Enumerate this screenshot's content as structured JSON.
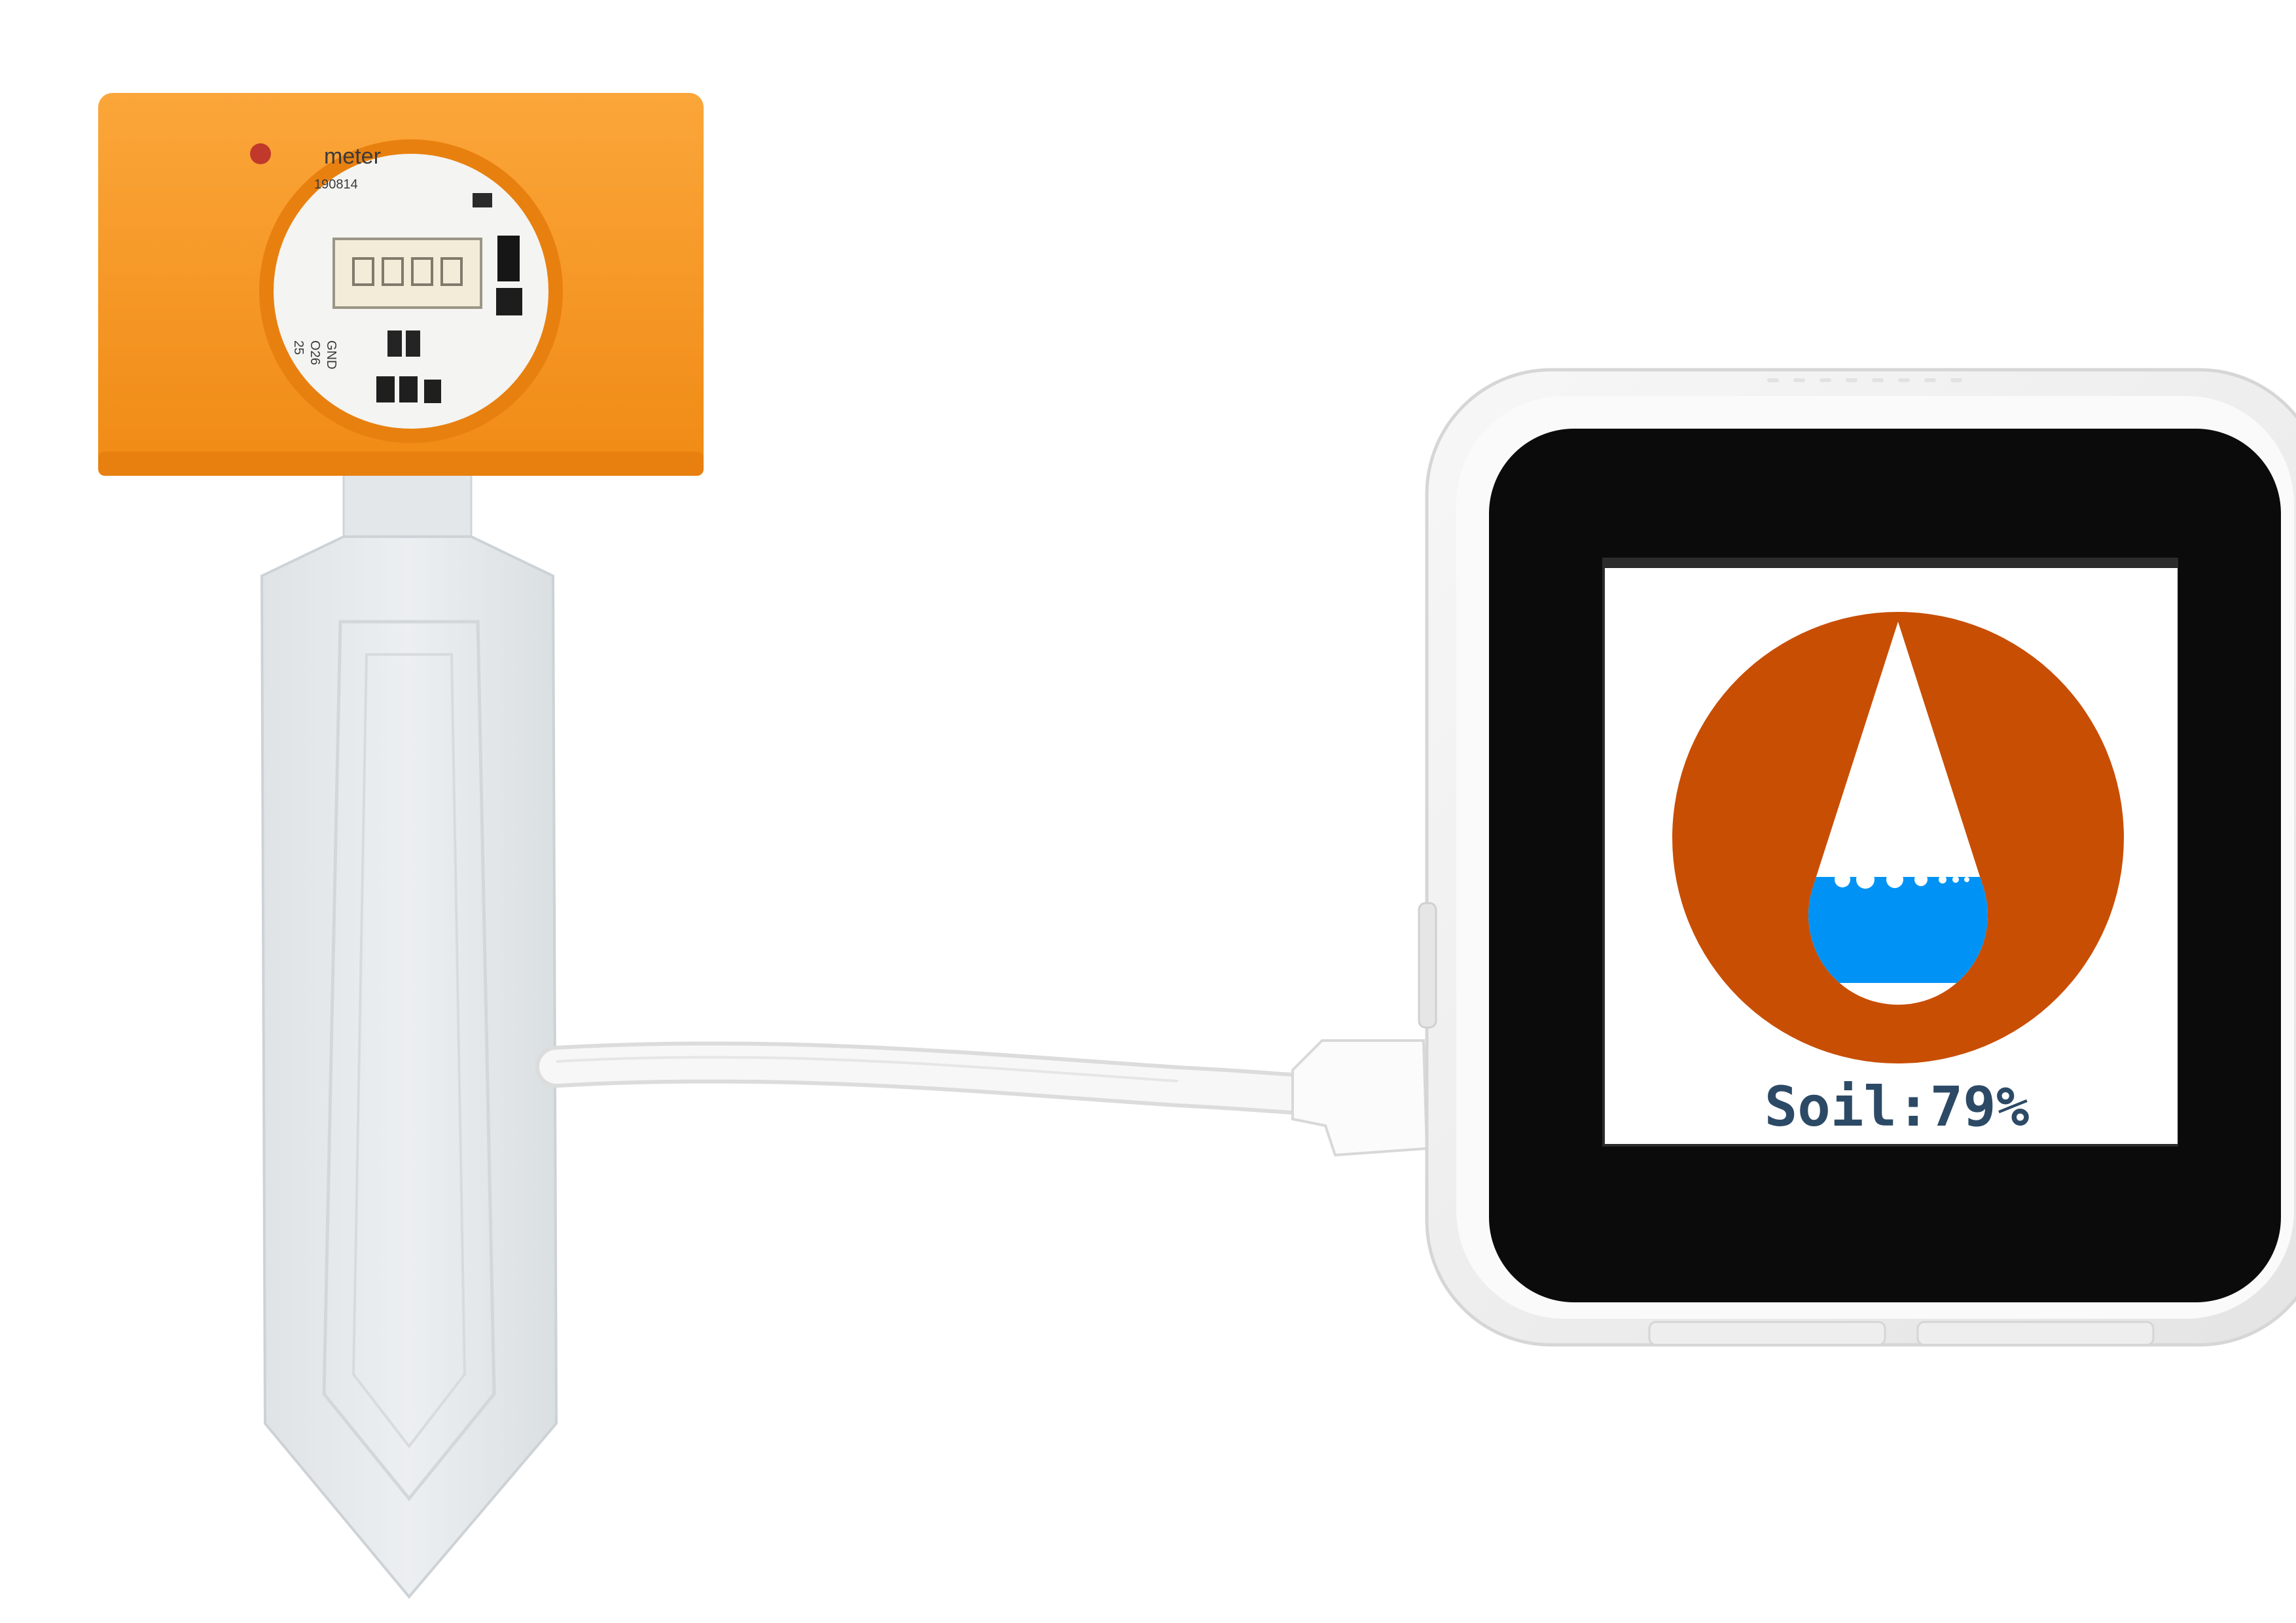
{
  "sensor": {
    "label_top": "meter",
    "label_code": "190814",
    "pin_labels": [
      "25",
      "O26",
      "GND"
    ]
  },
  "display": {
    "reading_text": "Soil:79%",
    "moisture_percent": 79
  },
  "colors": {
    "sensor_housing": "#F7941D",
    "probe": "#E5E8EA",
    "device_case": "#F1F1F1",
    "screen_bezel": "#0B0B0B",
    "screen_bg": "#FFFFFF",
    "gauge_ring": "#C84E04",
    "water": "#0093F5",
    "reading_text": "#2C4A66"
  }
}
